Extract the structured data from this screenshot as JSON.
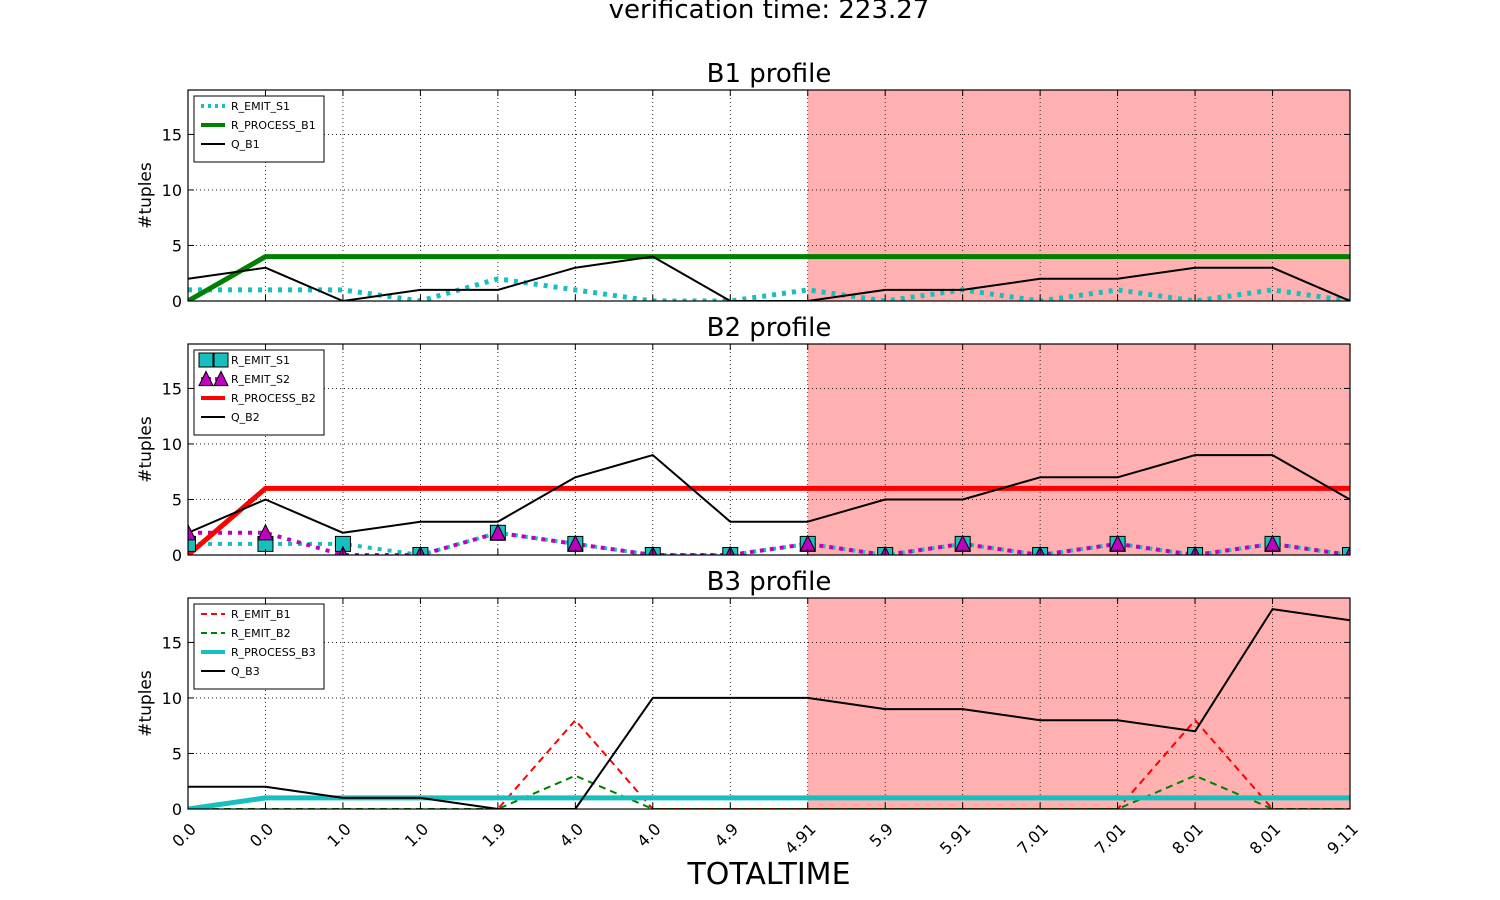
{
  "figure": {
    "suptitle": "verification time: 223.27",
    "xlabel": "TOTALTIME"
  },
  "colors": {
    "shade": "#ffb0b0",
    "cyan": "#17bfbf",
    "green": "#008000",
    "red": "#ff0000",
    "magenta": "#bf00bf",
    "black": "#000000"
  },
  "chart_data": [
    {
      "type": "line",
      "title": "B1 profile",
      "ylabel": "#tuples",
      "xlabel": "",
      "ylim": [
        0,
        19
      ],
      "yticks": [
        0,
        5,
        10,
        15
      ],
      "x_tick_labels": [
        "0.0",
        "0.0",
        "1.0",
        "1.0",
        "1.9",
        "4.0",
        "4.0",
        "4.9",
        "4.91",
        "5.9",
        "5.91",
        "7.01",
        "7.01",
        "8.01",
        "8.01",
        "9.11"
      ],
      "shaded_from_index": 8,
      "grid": true,
      "legend_position": "upper-left",
      "series": [
        {
          "name": "R_EMIT_S1",
          "style": "dotted",
          "color": "#17bfbf",
          "width": 5,
          "values": [
            1,
            1,
            1,
            0,
            2,
            1,
            0,
            0,
            1,
            0,
            1,
            0,
            1,
            0,
            1,
            0
          ]
        },
        {
          "name": "R_PROCESS_B1",
          "style": "solid",
          "color": "#008000",
          "width": 5,
          "values": [
            0,
            4,
            4,
            4,
            4,
            4,
            4,
            4,
            4,
            4,
            4,
            4,
            4,
            4,
            4,
            4
          ]
        },
        {
          "name": "Q_B1",
          "style": "solid",
          "color": "#000000",
          "width": 2,
          "values": [
            2,
            3,
            0,
            1,
            1,
            3,
            4,
            0,
            0,
            1,
            1,
            2,
            2,
            3,
            3,
            0
          ]
        }
      ]
    },
    {
      "type": "line",
      "title": "B2 profile",
      "ylabel": "#tuples",
      "xlabel": "",
      "ylim": [
        0,
        19
      ],
      "yticks": [
        0,
        5,
        10,
        15
      ],
      "x_tick_labels": [
        "0.0",
        "0.0",
        "1.0",
        "1.0",
        "1.9",
        "4.0",
        "4.0",
        "4.9",
        "4.91",
        "5.9",
        "5.91",
        "7.01",
        "7.01",
        "8.01",
        "8.01",
        "9.11"
      ],
      "shaded_from_index": 8,
      "grid": true,
      "legend_position": "upper-left",
      "series": [
        {
          "name": "R_EMIT_S1",
          "style": "dotted",
          "color": "#17bfbf",
          "width": 4,
          "marker": "square",
          "values": [
            1,
            1,
            1,
            0,
            2,
            1,
            0,
            0,
            1,
            0,
            1,
            0,
            1,
            0,
            1,
            0
          ]
        },
        {
          "name": "R_EMIT_S2",
          "style": "dotted",
          "color": "#bf00bf",
          "width": 4,
          "marker": "triangle",
          "values": [
            2,
            2,
            0,
            0,
            2,
            1,
            0,
            0,
            1,
            0,
            1,
            0,
            1,
            0,
            1,
            0
          ]
        },
        {
          "name": "R_PROCESS_B2",
          "style": "solid",
          "color": "#ff0000",
          "width": 5,
          "values": [
            0,
            6,
            6,
            6,
            6,
            6,
            6,
            6,
            6,
            6,
            6,
            6,
            6,
            6,
            6,
            6
          ]
        },
        {
          "name": "Q_B2",
          "style": "solid",
          "color": "#000000",
          "width": 2,
          "values": [
            2,
            5,
            2,
            3,
            3,
            7,
            9,
            3,
            3,
            5,
            5,
            7,
            7,
            9,
            9,
            5
          ]
        }
      ]
    },
    {
      "type": "line",
      "title": "B3 profile",
      "ylabel": "#tuples",
      "xlabel": "TOTALTIME",
      "ylim": [
        0,
        19
      ],
      "yticks": [
        0,
        5,
        10,
        15
      ],
      "x_tick_labels": [
        "0.0",
        "0.0",
        "1.0",
        "1.0",
        "1.9",
        "4.0",
        "4.0",
        "4.9",
        "4.91",
        "5.9",
        "5.91",
        "7.01",
        "7.01",
        "8.01",
        "8.01",
        "9.11"
      ],
      "shaded_from_index": 8,
      "grid": true,
      "legend_position": "upper-left",
      "series": [
        {
          "name": "R_EMIT_B1",
          "style": "dashed",
          "color": "#ff0000",
          "width": 2,
          "values": [
            0,
            0,
            0,
            0,
            0,
            8,
            0,
            0,
            0,
            0,
            0,
            0,
            0,
            8,
            0,
            0
          ]
        },
        {
          "name": "R_EMIT_B2",
          "style": "dashed",
          "color": "#008000",
          "width": 2,
          "values": [
            0,
            0,
            0,
            0,
            0,
            3,
            0,
            0,
            0,
            0,
            0,
            0,
            0,
            3,
            0,
            0
          ]
        },
        {
          "name": "R_PROCESS_B3",
          "style": "solid",
          "color": "#17bfbf",
          "width": 5,
          "values": [
            0,
            1,
            1,
            1,
            1,
            1,
            1,
            1,
            1,
            1,
            1,
            1,
            1,
            1,
            1,
            1
          ]
        },
        {
          "name": "Q_B3",
          "style": "solid",
          "color": "#000000",
          "width": 2,
          "values": [
            2,
            2,
            1,
            1,
            0,
            0,
            10,
            10,
            10,
            9,
            9,
            8,
            8,
            7,
            18,
            17
          ]
        }
      ]
    }
  ]
}
